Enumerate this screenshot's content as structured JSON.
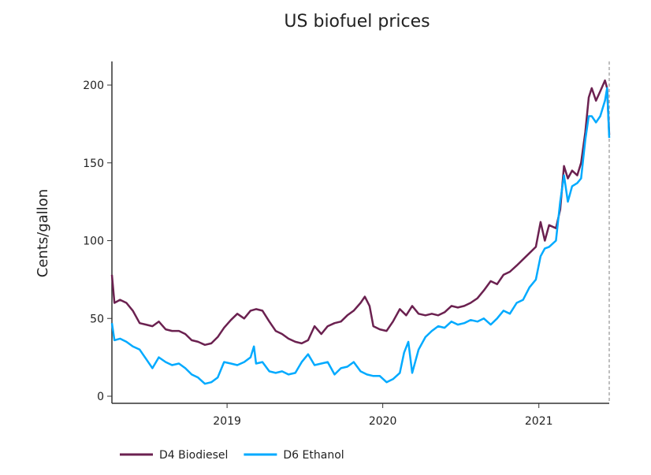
{
  "chart_data": {
    "type": "line",
    "title": "US biofuel prices",
    "xlabel": "",
    "ylabel": "Cents/gallon",
    "xlim": [
      "2018-04-06",
      "2021-06-15"
    ],
    "ylim": [
      -4,
      215
    ],
    "x_ticks": [
      "2019",
      "2020",
      "2021"
    ],
    "y_ticks": [
      0,
      50,
      100,
      150,
      200
    ],
    "grid": false,
    "legend_placement": "bottom-left",
    "end_marker": "dashed vertical line at last date",
    "series": [
      {
        "name": "D4 Biodiesel",
        "color": "#6b2150",
        "points": [
          [
            "2018-04-06",
            78
          ],
          [
            "2018-04-12",
            60
          ],
          [
            "2018-04-25",
            62
          ],
          [
            "2018-05-10",
            60
          ],
          [
            "2018-05-25",
            55
          ],
          [
            "2018-06-10",
            47
          ],
          [
            "2018-06-25",
            46
          ],
          [
            "2018-07-10",
            45
          ],
          [
            "2018-07-25",
            48
          ],
          [
            "2018-08-10",
            43
          ],
          [
            "2018-08-25",
            42
          ],
          [
            "2018-09-10",
            42
          ],
          [
            "2018-09-25",
            40
          ],
          [
            "2018-10-10",
            36
          ],
          [
            "2018-10-25",
            35
          ],
          [
            "2018-11-10",
            33
          ],
          [
            "2018-11-25",
            34
          ],
          [
            "2018-12-10",
            38
          ],
          [
            "2018-12-25",
            44
          ],
          [
            "2019-01-10",
            49
          ],
          [
            "2019-01-25",
            53
          ],
          [
            "2019-02-10",
            50
          ],
          [
            "2019-02-25",
            55
          ],
          [
            "2019-03-10",
            56
          ],
          [
            "2019-03-25",
            55
          ],
          [
            "2019-04-10",
            48
          ],
          [
            "2019-04-25",
            42
          ],
          [
            "2019-05-10",
            40
          ],
          [
            "2019-05-25",
            37
          ],
          [
            "2019-06-10",
            35
          ],
          [
            "2019-06-25",
            34
          ],
          [
            "2019-07-10",
            36
          ],
          [
            "2019-07-25",
            45
          ],
          [
            "2019-08-10",
            40
          ],
          [
            "2019-08-25",
            45
          ],
          [
            "2019-09-10",
            47
          ],
          [
            "2019-09-25",
            48
          ],
          [
            "2019-10-10",
            52
          ],
          [
            "2019-10-25",
            55
          ],
          [
            "2019-11-10",
            60
          ],
          [
            "2019-11-20",
            64
          ],
          [
            "2019-12-01",
            58
          ],
          [
            "2019-12-10",
            45
          ],
          [
            "2019-12-25",
            43
          ],
          [
            "2020-01-10",
            42
          ],
          [
            "2020-01-25",
            48
          ],
          [
            "2020-02-10",
            56
          ],
          [
            "2020-02-25",
            52
          ],
          [
            "2020-03-10",
            58
          ],
          [
            "2020-03-25",
            53
          ],
          [
            "2020-04-10",
            52
          ],
          [
            "2020-04-25",
            53
          ],
          [
            "2020-05-10",
            52
          ],
          [
            "2020-05-25",
            54
          ],
          [
            "2020-06-10",
            58
          ],
          [
            "2020-06-25",
            57
          ],
          [
            "2020-07-10",
            58
          ],
          [
            "2020-07-25",
            60
          ],
          [
            "2020-08-10",
            63
          ],
          [
            "2020-08-25",
            68
          ],
          [
            "2020-09-10",
            74
          ],
          [
            "2020-09-25",
            72
          ],
          [
            "2020-10-10",
            78
          ],
          [
            "2020-10-25",
            80
          ],
          [
            "2020-11-10",
            84
          ],
          [
            "2020-11-25",
            88
          ],
          [
            "2020-12-10",
            92
          ],
          [
            "2020-12-25",
            96
          ],
          [
            "2021-01-05",
            112
          ],
          [
            "2021-01-15",
            100
          ],
          [
            "2021-01-25",
            110
          ],
          [
            "2021-02-10",
            108
          ],
          [
            "2021-02-20",
            120
          ],
          [
            "2021-03-01",
            148
          ],
          [
            "2021-03-10",
            140
          ],
          [
            "2021-03-20",
            145
          ],
          [
            "2021-04-01",
            142
          ],
          [
            "2021-04-10",
            150
          ],
          [
            "2021-04-20",
            170
          ],
          [
            "2021-04-28",
            192
          ],
          [
            "2021-05-05",
            198
          ],
          [
            "2021-05-15",
            190
          ],
          [
            "2021-05-25",
            196
          ],
          [
            "2021-06-05",
            203
          ],
          [
            "2021-06-10",
            198
          ],
          [
            "2021-06-15",
            168
          ]
        ]
      },
      {
        "name": "D6 Ethanol",
        "color": "#00aaff",
        "points": [
          [
            "2018-04-06",
            47
          ],
          [
            "2018-04-12",
            36
          ],
          [
            "2018-04-25",
            37
          ],
          [
            "2018-05-10",
            35
          ],
          [
            "2018-05-25",
            32
          ],
          [
            "2018-06-10",
            30
          ],
          [
            "2018-06-25",
            24
          ],
          [
            "2018-07-10",
            18
          ],
          [
            "2018-07-25",
            25
          ],
          [
            "2018-08-10",
            22
          ],
          [
            "2018-08-25",
            20
          ],
          [
            "2018-09-10",
            21
          ],
          [
            "2018-09-25",
            18
          ],
          [
            "2018-10-10",
            14
          ],
          [
            "2018-10-25",
            12
          ],
          [
            "2018-11-10",
            8
          ],
          [
            "2018-11-25",
            9
          ],
          [
            "2018-12-10",
            12
          ],
          [
            "2018-12-25",
            22
          ],
          [
            "2019-01-10",
            21
          ],
          [
            "2019-01-25",
            20
          ],
          [
            "2019-02-10",
            22
          ],
          [
            "2019-02-25",
            25
          ],
          [
            "2019-03-05",
            32
          ],
          [
            "2019-03-10",
            21
          ],
          [
            "2019-03-25",
            22
          ],
          [
            "2019-04-10",
            16
          ],
          [
            "2019-04-25",
            15
          ],
          [
            "2019-05-10",
            16
          ],
          [
            "2019-05-25",
            14
          ],
          [
            "2019-06-10",
            15
          ],
          [
            "2019-06-25",
            22
          ],
          [
            "2019-07-10",
            27
          ],
          [
            "2019-07-25",
            20
          ],
          [
            "2019-08-10",
            21
          ],
          [
            "2019-08-25",
            22
          ],
          [
            "2019-09-10",
            14
          ],
          [
            "2019-09-25",
            18
          ],
          [
            "2019-10-10",
            19
          ],
          [
            "2019-10-25",
            22
          ],
          [
            "2019-11-10",
            16
          ],
          [
            "2019-11-25",
            14
          ],
          [
            "2019-12-10",
            13
          ],
          [
            "2019-12-25",
            13
          ],
          [
            "2020-01-10",
            9
          ],
          [
            "2020-01-25",
            11
          ],
          [
            "2020-02-10",
            15
          ],
          [
            "2020-02-20",
            28
          ],
          [
            "2020-03-01",
            35
          ],
          [
            "2020-03-10",
            15
          ],
          [
            "2020-03-25",
            30
          ],
          [
            "2020-04-10",
            38
          ],
          [
            "2020-04-25",
            42
          ],
          [
            "2020-05-10",
            45
          ],
          [
            "2020-05-25",
            44
          ],
          [
            "2020-06-10",
            48
          ],
          [
            "2020-06-25",
            46
          ],
          [
            "2020-07-10",
            47
          ],
          [
            "2020-07-25",
            49
          ],
          [
            "2020-08-10",
            48
          ],
          [
            "2020-08-25",
            50
          ],
          [
            "2020-09-10",
            46
          ],
          [
            "2020-09-25",
            50
          ],
          [
            "2020-10-10",
            55
          ],
          [
            "2020-10-25",
            53
          ],
          [
            "2020-11-10",
            60
          ],
          [
            "2020-11-25",
            62
          ],
          [
            "2020-12-10",
            70
          ],
          [
            "2020-12-25",
            75
          ],
          [
            "2021-01-05",
            90
          ],
          [
            "2021-01-15",
            95
          ],
          [
            "2021-01-25",
            96
          ],
          [
            "2021-02-10",
            100
          ],
          [
            "2021-02-20",
            125
          ],
          [
            "2021-03-01",
            142
          ],
          [
            "2021-03-10",
            125
          ],
          [
            "2021-03-20",
            135
          ],
          [
            "2021-04-01",
            137
          ],
          [
            "2021-04-10",
            140
          ],
          [
            "2021-04-20",
            165
          ],
          [
            "2021-04-28",
            180
          ],
          [
            "2021-05-05",
            180
          ],
          [
            "2021-05-15",
            176
          ],
          [
            "2021-05-25",
            180
          ],
          [
            "2021-06-05",
            190
          ],
          [
            "2021-06-10",
            198
          ],
          [
            "2021-06-15",
            166
          ]
        ]
      }
    ]
  }
}
